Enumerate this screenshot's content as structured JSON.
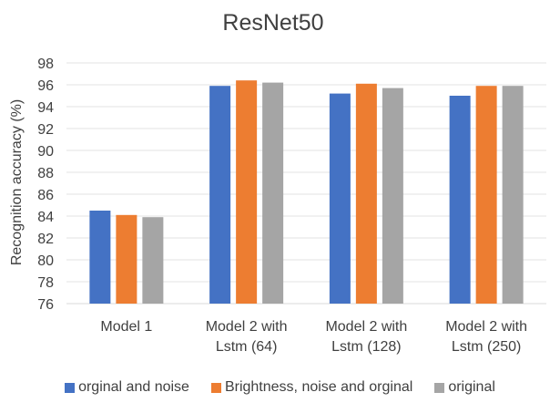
{
  "chart_data": {
    "type": "bar",
    "title": "ResNet50",
    "xlabel": "",
    "ylabel": "Recognition accuracy (%)",
    "ylim": [
      76,
      98
    ],
    "yticks": [
      76,
      78,
      80,
      82,
      84,
      86,
      88,
      90,
      92,
      94,
      96,
      98
    ],
    "grid": true,
    "legend_position": "bottom",
    "categories": [
      [
        "Model 1"
      ],
      [
        "Model 2 with",
        "Lstm (64)"
      ],
      [
        "Model 2 with",
        "Lstm (128)"
      ],
      [
        "Model 2 with",
        "Lstm (250)"
      ]
    ],
    "series": [
      {
        "name": "orginal and noise",
        "color": "#4472C4",
        "values": [
          84.5,
          95.9,
          95.2,
          95.0
        ]
      },
      {
        "name": "Brightness, noise and orginal",
        "color": "#ED7D31",
        "values": [
          84.1,
          96.4,
          96.1,
          95.9
        ]
      },
      {
        "name": "original",
        "color": "#A5A5A5",
        "values": [
          83.9,
          96.2,
          95.7,
          95.9
        ]
      }
    ]
  }
}
